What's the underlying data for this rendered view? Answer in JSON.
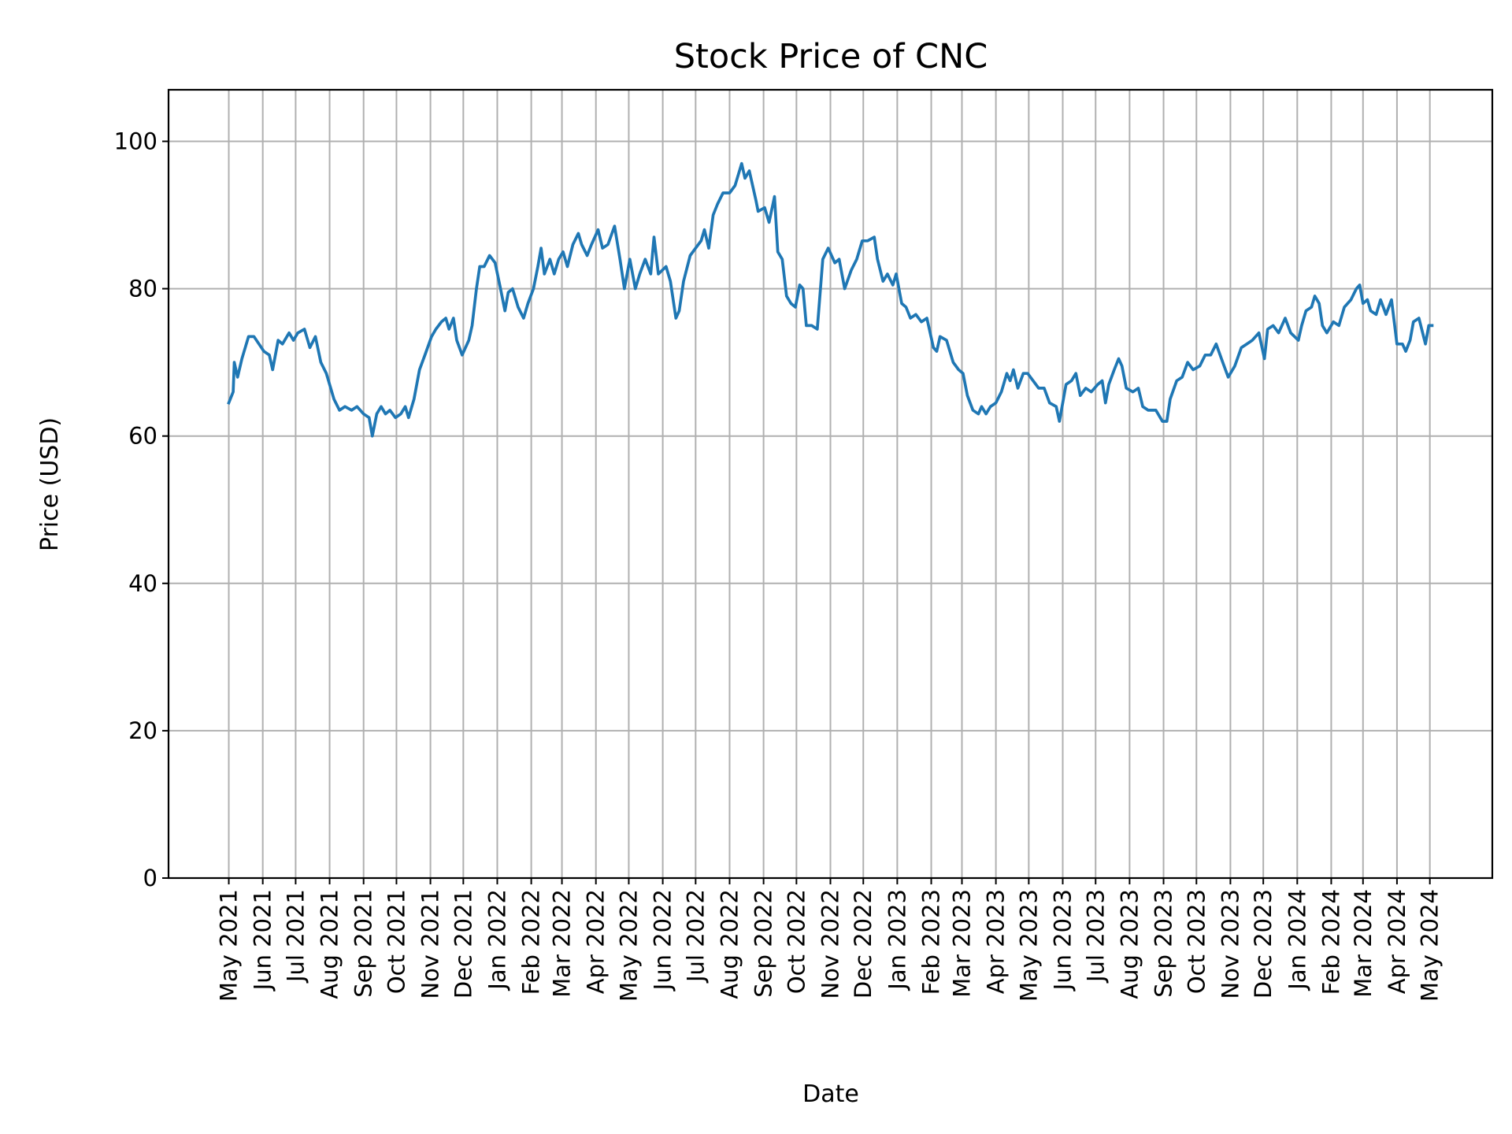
{
  "chart_data": {
    "type": "line",
    "title": "Stock Price of CNC",
    "xlabel": "Date",
    "ylabel": "Price (USD)",
    "ylim": [
      0,
      107
    ],
    "xlim": [
      "2021-03-07",
      "2024-06-27"
    ],
    "grid": true,
    "line_color": "#1f77b4",
    "yticks": [
      0,
      20,
      40,
      60,
      80,
      100
    ],
    "xticks": [
      {
        "date": "2021-05-01",
        "label": "May 2021"
      },
      {
        "date": "2021-06-01",
        "label": "Jun 2021"
      },
      {
        "date": "2021-07-01",
        "label": "Jul 2021"
      },
      {
        "date": "2021-08-01",
        "label": "Aug 2021"
      },
      {
        "date": "2021-09-01",
        "label": "Sep 2021"
      },
      {
        "date": "2021-10-01",
        "label": "Oct 2021"
      },
      {
        "date": "2021-11-01",
        "label": "Nov 2021"
      },
      {
        "date": "2021-12-01",
        "label": "Dec 2021"
      },
      {
        "date": "2022-01-01",
        "label": "Jan 2022"
      },
      {
        "date": "2022-02-01",
        "label": "Feb 2022"
      },
      {
        "date": "2022-03-01",
        "label": "Mar 2022"
      },
      {
        "date": "2022-04-01",
        "label": "Apr 2022"
      },
      {
        "date": "2022-05-01",
        "label": "May 2022"
      },
      {
        "date": "2022-06-01",
        "label": "Jun 2022"
      },
      {
        "date": "2022-07-01",
        "label": "Jul 2022"
      },
      {
        "date": "2022-08-01",
        "label": "Aug 2022"
      },
      {
        "date": "2022-09-01",
        "label": "Sep 2022"
      },
      {
        "date": "2022-10-01",
        "label": "Oct 2022"
      },
      {
        "date": "2022-11-01",
        "label": "Nov 2022"
      },
      {
        "date": "2022-12-01",
        "label": "Dec 2022"
      },
      {
        "date": "2023-01-01",
        "label": "Jan 2023"
      },
      {
        "date": "2023-02-01",
        "label": "Feb 2023"
      },
      {
        "date": "2023-03-01",
        "label": "Mar 2023"
      },
      {
        "date": "2023-04-01",
        "label": "Apr 2023"
      },
      {
        "date": "2023-05-01",
        "label": "May 2023"
      },
      {
        "date": "2023-06-01",
        "label": "Jun 2023"
      },
      {
        "date": "2023-07-01",
        "label": "Jul 2023"
      },
      {
        "date": "2023-08-01",
        "label": "Aug 2023"
      },
      {
        "date": "2023-09-01",
        "label": "Sep 2023"
      },
      {
        "date": "2023-10-01",
        "label": "Oct 2023"
      },
      {
        "date": "2023-11-01",
        "label": "Nov 2023"
      },
      {
        "date": "2023-12-01",
        "label": "Dec 2023"
      },
      {
        "date": "2024-01-01",
        "label": "Jan 2024"
      },
      {
        "date": "2024-02-01",
        "label": "Feb 2024"
      },
      {
        "date": "2024-03-01",
        "label": "Mar 2024"
      },
      {
        "date": "2024-04-01",
        "label": "Apr 2024"
      },
      {
        "date": "2024-05-01",
        "label": "May 2024"
      }
    ],
    "series": [
      {
        "points": [
          [
            "2021-05-01",
            64.5
          ],
          [
            "2021-05-05",
            66
          ],
          [
            "2021-05-06",
            70
          ],
          [
            "2021-05-09",
            68
          ],
          [
            "2021-05-13",
            70.5
          ],
          [
            "2021-05-19",
            73.5
          ],
          [
            "2021-05-24",
            73.5
          ],
          [
            "2021-06-02",
            71.5
          ],
          [
            "2021-06-07",
            71
          ],
          [
            "2021-06-10",
            69
          ],
          [
            "2021-06-15",
            73
          ],
          [
            "2021-06-19",
            72.5
          ],
          [
            "2021-06-25",
            74
          ],
          [
            "2021-06-29",
            73
          ],
          [
            "2021-07-03",
            74
          ],
          [
            "2021-07-09",
            74.5
          ],
          [
            "2021-07-14",
            72
          ],
          [
            "2021-07-19",
            73.5
          ],
          [
            "2021-07-24",
            70
          ],
          [
            "2021-07-29",
            68.5
          ],
          [
            "2021-08-05",
            65
          ],
          [
            "2021-08-10",
            63.5
          ],
          [
            "2021-08-15",
            64
          ],
          [
            "2021-08-21",
            63.5
          ],
          [
            "2021-08-26",
            64
          ],
          [
            "2021-09-01",
            63
          ],
          [
            "2021-09-06",
            62.5
          ],
          [
            "2021-09-09",
            60
          ],
          [
            "2021-09-13",
            63
          ],
          [
            "2021-09-17",
            64
          ],
          [
            "2021-09-21",
            63
          ],
          [
            "2021-09-25",
            63.5
          ],
          [
            "2021-09-30",
            62.5
          ],
          [
            "2021-10-05",
            63
          ],
          [
            "2021-10-09",
            64
          ],
          [
            "2021-10-12",
            62.5
          ],
          [
            "2021-10-17",
            65
          ],
          [
            "2021-10-22",
            69
          ],
          [
            "2021-10-27",
            71
          ],
          [
            "2021-11-02",
            73.5
          ],
          [
            "2021-11-06",
            74.5
          ],
          [
            "2021-11-11",
            75.5
          ],
          [
            "2021-11-15",
            76
          ],
          [
            "2021-11-18",
            74.5
          ],
          [
            "2021-11-22",
            76
          ],
          [
            "2021-11-25",
            73
          ],
          [
            "2021-11-30",
            71
          ],
          [
            "2021-12-06",
            73
          ],
          [
            "2021-12-09",
            75
          ],
          [
            "2021-12-13",
            80
          ],
          [
            "2021-12-16",
            83
          ],
          [
            "2021-12-20",
            83
          ],
          [
            "2021-12-25",
            84.5
          ],
          [
            "2021-12-30",
            83.5
          ],
          [
            "2022-01-04",
            80
          ],
          [
            "2022-01-08",
            77
          ],
          [
            "2022-01-11",
            79.5
          ],
          [
            "2022-01-15",
            80
          ],
          [
            "2022-01-20",
            77.5
          ],
          [
            "2022-01-25",
            76
          ],
          [
            "2022-01-29",
            78
          ],
          [
            "2022-02-03",
            80
          ],
          [
            "2022-02-07",
            83
          ],
          [
            "2022-02-10",
            85.5
          ],
          [
            "2022-02-13",
            82
          ],
          [
            "2022-02-18",
            84
          ],
          [
            "2022-02-22",
            82
          ],
          [
            "2022-02-26",
            84
          ],
          [
            "2022-03-02",
            85
          ],
          [
            "2022-03-06",
            83
          ],
          [
            "2022-03-11",
            86
          ],
          [
            "2022-03-16",
            87.5
          ],
          [
            "2022-03-19",
            86
          ],
          [
            "2022-03-24",
            84.5
          ],
          [
            "2022-03-28",
            86
          ],
          [
            "2022-04-03",
            88
          ],
          [
            "2022-04-07",
            85.5
          ],
          [
            "2022-04-12",
            86
          ],
          [
            "2022-04-18",
            88.5
          ],
          [
            "2022-04-23",
            84
          ],
          [
            "2022-04-27",
            80
          ],
          [
            "2022-05-02",
            84
          ],
          [
            "2022-05-07",
            80
          ],
          [
            "2022-05-11",
            82
          ],
          [
            "2022-05-16",
            84
          ],
          [
            "2022-05-21",
            82
          ],
          [
            "2022-05-24",
            87
          ],
          [
            "2022-05-28",
            82
          ],
          [
            "2022-06-04",
            83
          ],
          [
            "2022-06-08",
            81
          ],
          [
            "2022-06-13",
            76
          ],
          [
            "2022-06-16",
            77
          ],
          [
            "2022-06-20",
            81
          ],
          [
            "2022-06-26",
            84.5
          ],
          [
            "2022-07-01",
            85.5
          ],
          [
            "2022-07-06",
            86.5
          ],
          [
            "2022-07-09",
            88
          ],
          [
            "2022-07-13",
            85.5
          ],
          [
            "2022-07-17",
            90
          ],
          [
            "2022-07-21",
            91.5
          ],
          [
            "2022-07-26",
            93
          ],
          [
            "2022-08-01",
            93
          ],
          [
            "2022-08-06",
            94
          ],
          [
            "2022-08-12",
            97
          ],
          [
            "2022-08-15",
            95
          ],
          [
            "2022-08-19",
            96
          ],
          [
            "2022-08-25",
            92
          ],
          [
            "2022-08-27",
            90.5
          ],
          [
            "2022-09-02",
            91
          ],
          [
            "2022-09-06",
            89
          ],
          [
            "2022-09-11",
            92.5
          ],
          [
            "2022-09-14",
            85
          ],
          [
            "2022-09-18",
            84
          ],
          [
            "2022-09-22",
            79
          ],
          [
            "2022-09-26",
            78
          ],
          [
            "2022-09-30",
            77.5
          ],
          [
            "2022-10-04",
            80.5
          ],
          [
            "2022-10-07",
            80
          ],
          [
            "2022-10-10",
            75
          ],
          [
            "2022-10-15",
            75
          ],
          [
            "2022-10-20",
            74.5
          ],
          [
            "2022-10-25",
            84
          ],
          [
            "2022-10-30",
            85.5
          ],
          [
            "2022-11-05",
            83.5
          ],
          [
            "2022-11-09",
            84
          ],
          [
            "2022-11-14",
            80
          ],
          [
            "2022-11-20",
            82.5
          ],
          [
            "2022-11-25",
            84
          ],
          [
            "2022-11-30",
            86.5
          ],
          [
            "2022-12-05",
            86.5
          ],
          [
            "2022-12-11",
            87
          ],
          [
            "2022-12-14",
            84
          ],
          [
            "2022-12-19",
            81
          ],
          [
            "2022-12-23",
            82
          ],
          [
            "2022-12-28",
            80.5
          ],
          [
            "2022-12-31",
            82
          ],
          [
            "2023-01-05",
            78
          ],
          [
            "2023-01-09",
            77.5
          ],
          [
            "2023-01-13",
            76
          ],
          [
            "2023-01-18",
            76.5
          ],
          [
            "2023-01-23",
            75.5
          ],
          [
            "2023-01-28",
            76
          ],
          [
            "2023-02-03",
            72
          ],
          [
            "2023-02-06",
            71.5
          ],
          [
            "2023-02-09",
            73.5
          ],
          [
            "2023-02-15",
            73
          ],
          [
            "2023-02-21",
            70
          ],
          [
            "2023-02-26",
            69
          ],
          [
            "2023-03-02",
            68.5
          ],
          [
            "2023-03-06",
            65.5
          ],
          [
            "2023-03-11",
            63.5
          ],
          [
            "2023-03-16",
            63
          ],
          [
            "2023-03-19",
            64
          ],
          [
            "2023-03-23",
            63
          ],
          [
            "2023-03-27",
            64
          ],
          [
            "2023-04-01",
            64.5
          ],
          [
            "2023-04-06",
            66
          ],
          [
            "2023-04-11",
            68.5
          ],
          [
            "2023-04-14",
            67.5
          ],
          [
            "2023-04-17",
            69
          ],
          [
            "2023-04-21",
            66.5
          ],
          [
            "2023-04-26",
            68.5
          ],
          [
            "2023-04-30",
            68.5
          ],
          [
            "2023-05-05",
            67.5
          ],
          [
            "2023-05-10",
            66.5
          ],
          [
            "2023-05-15",
            66.5
          ],
          [
            "2023-05-20",
            64.5
          ],
          [
            "2023-05-26",
            64
          ],
          [
            "2023-05-29",
            62
          ],
          [
            "2023-06-04",
            67
          ],
          [
            "2023-06-09",
            67.5
          ],
          [
            "2023-06-13",
            68.5
          ],
          [
            "2023-06-17",
            65.5
          ],
          [
            "2023-06-22",
            66.5
          ],
          [
            "2023-06-27",
            66
          ],
          [
            "2023-07-03",
            67
          ],
          [
            "2023-07-07",
            67.5
          ],
          [
            "2023-07-10",
            64.5
          ],
          [
            "2023-07-13",
            67
          ],
          [
            "2023-07-18",
            69
          ],
          [
            "2023-07-22",
            70.5
          ],
          [
            "2023-07-25",
            69.5
          ],
          [
            "2023-07-29",
            66.5
          ],
          [
            "2023-08-04",
            66
          ],
          [
            "2023-08-09",
            66.5
          ],
          [
            "2023-08-13",
            64
          ],
          [
            "2023-08-18",
            63.5
          ],
          [
            "2023-08-25",
            63.5
          ],
          [
            "2023-08-31",
            62
          ],
          [
            "2023-09-04",
            62
          ],
          [
            "2023-09-07",
            65
          ],
          [
            "2023-09-13",
            67.5
          ],
          [
            "2023-09-18",
            68
          ],
          [
            "2023-09-23",
            70
          ],
          [
            "2023-09-28",
            69
          ],
          [
            "2023-10-04",
            69.5
          ],
          [
            "2023-10-09",
            71
          ],
          [
            "2023-10-14",
            71
          ],
          [
            "2023-10-19",
            72.5
          ],
          [
            "2023-10-25",
            70
          ],
          [
            "2023-10-30",
            68
          ],
          [
            "2023-11-05",
            69.5
          ],
          [
            "2023-11-11",
            72
          ],
          [
            "2023-11-16",
            72.5
          ],
          [
            "2023-11-21",
            73
          ],
          [
            "2023-11-27",
            74
          ],
          [
            "2023-12-02",
            70.5
          ],
          [
            "2023-12-05",
            74.5
          ],
          [
            "2023-12-10",
            75
          ],
          [
            "2023-12-15",
            74
          ],
          [
            "2023-12-21",
            76
          ],
          [
            "2023-12-26",
            74
          ],
          [
            "2024-01-02",
            73
          ],
          [
            "2024-01-05",
            75
          ],
          [
            "2024-01-09",
            77
          ],
          [
            "2024-01-14",
            77.5
          ],
          [
            "2024-01-17",
            79
          ],
          [
            "2024-01-21",
            78
          ],
          [
            "2024-01-24",
            75
          ],
          [
            "2024-01-28",
            74
          ],
          [
            "2024-02-03",
            75.5
          ],
          [
            "2024-02-08",
            75
          ],
          [
            "2024-02-13",
            77.5
          ],
          [
            "2024-02-19",
            78.5
          ],
          [
            "2024-02-24",
            80
          ],
          [
            "2024-02-27",
            80.5
          ],
          [
            "2024-03-01",
            78
          ],
          [
            "2024-03-05",
            78.5
          ],
          [
            "2024-03-08",
            77
          ],
          [
            "2024-03-13",
            76.5
          ],
          [
            "2024-03-17",
            78.5
          ],
          [
            "2024-03-22",
            76.5
          ],
          [
            "2024-03-27",
            78.5
          ],
          [
            "2024-04-01",
            72.5
          ],
          [
            "2024-04-06",
            72.5
          ],
          [
            "2024-04-09",
            71.5
          ],
          [
            "2024-04-13",
            73
          ],
          [
            "2024-04-16",
            75.5
          ],
          [
            "2024-04-21",
            76
          ],
          [
            "2024-04-27",
            72.5
          ],
          [
            "2024-04-30",
            75
          ],
          [
            "2024-05-03",
            75
          ]
        ]
      }
    ]
  }
}
